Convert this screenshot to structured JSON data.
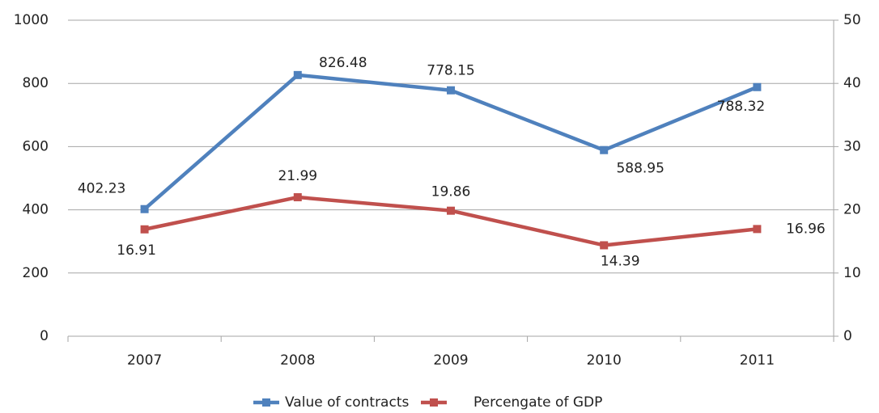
{
  "chart_data": {
    "type": "line",
    "categories": [
      "2007",
      "2008",
      "2009",
      "2010",
      "2011"
    ],
    "series": [
      {
        "name": "Value of contracts",
        "color": "#4f81bd",
        "values": [
          402.23,
          826.48,
          778.15,
          588.95,
          788.32
        ]
      },
      {
        "name": "Percengate of GDP",
        "color": "#c0504d",
        "axis": "y2",
        "values": [
          16.91,
          21.99,
          19.86,
          14.39,
          16.96
        ]
      }
    ],
    "ylim": [
      0,
      1000
    ],
    "yticks": [
      0,
      200,
      400,
      600,
      800,
      1000
    ],
    "y2lim": [
      0,
      50
    ],
    "y2ticks": [
      0,
      10,
      20,
      30,
      40,
      50
    ],
    "grid": true,
    "legend": "bottom"
  }
}
